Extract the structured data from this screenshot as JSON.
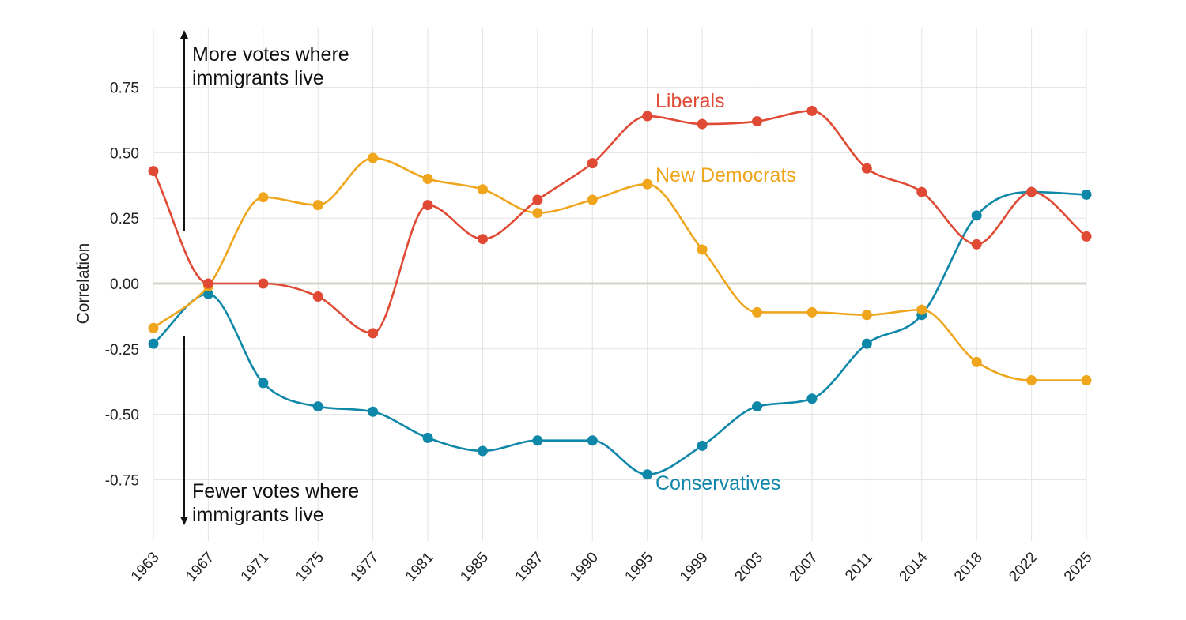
{
  "chart_data": {
    "type": "line",
    "ylabel": "Correlation",
    "xlabel": "",
    "ylim": [
      -1.0,
      1.0
    ],
    "yticks": [
      "0.75",
      "0.50",
      "0.25",
      "0.00",
      "-0.25",
      "-0.50",
      "-0.75"
    ],
    "ytick_values": [
      0.75,
      0.5,
      0.25,
      0.0,
      -0.25,
      -0.5,
      -0.75
    ],
    "categories": [
      "1963",
      "1967",
      "1971",
      "1975",
      "1977",
      "1981",
      "1985",
      "1987",
      "1990",
      "1995",
      "1999",
      "2003",
      "2007",
      "2011",
      "2014",
      "2018",
      "2022",
      "2025"
    ],
    "grid": true,
    "legend": "inline labels",
    "series": [
      {
        "name": "Liberals",
        "color": "#e04a35",
        "values": [
          0.43,
          0.0,
          0.0,
          -0.05,
          -0.19,
          0.3,
          0.17,
          0.32,
          0.46,
          0.64,
          0.61,
          0.62,
          0.66,
          0.44,
          0.35,
          0.15,
          0.35,
          0.18
        ]
      },
      {
        "name": "New Democrats",
        "color": "#efa51c",
        "values": [
          -0.17,
          -0.01,
          0.33,
          0.3,
          0.48,
          0.4,
          0.36,
          0.27,
          0.32,
          0.38,
          0.13,
          -0.11,
          -0.11,
          -0.12,
          -0.1,
          -0.3,
          -0.37,
          -0.37
        ]
      },
      {
        "name": "Conservatives",
        "color": "#0e87a8",
        "values": [
          -0.23,
          -0.04,
          -0.38,
          -0.47,
          -0.49,
          -0.59,
          -0.64,
          -0.6,
          -0.6,
          -0.73,
          -0.62,
          -0.47,
          -0.44,
          -0.23,
          -0.12,
          0.26,
          0.35,
          0.34
        ]
      }
    ],
    "annotations": {
      "up_line1": "More votes where",
      "up_line2": "immigrants live",
      "down_line1": "Fewer votes where",
      "down_line2": "immigrants live"
    }
  }
}
